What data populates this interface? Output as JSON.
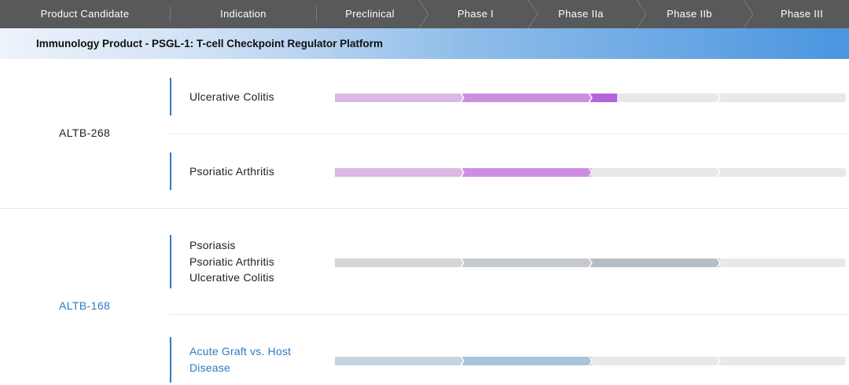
{
  "header": {
    "columns": [
      "Product Candidate",
      "Indication",
      "Preclinical",
      "Phase I",
      "Phase IIa",
      "Phase IIb",
      "Phase III"
    ]
  },
  "category": {
    "title": "Immunology Product - PSGL-1: T-cell Checkpoint Regulator Platform"
  },
  "products": [
    {
      "name": "ALTB-268",
      "indications": [
        {
          "lines": [
            "Ulcerative Colitis"
          ],
          "progress_phases": 2.2,
          "colors": [
            "#dcb8e5",
            "#cc8fe0",
            "#b564de"
          ]
        },
        {
          "lines": [
            "Psoriatic Arthritis"
          ],
          "progress_phases": 2.0,
          "colors": [
            "#dcb8e5",
            "#cc8fe0"
          ]
        }
      ]
    },
    {
      "name": "ALTB-168",
      "indications": [
        {
          "lines": [
            "Psoriasis",
            "Psoriatic Arthritis",
            "Ulcerative Colitis"
          ],
          "progress_phases": 3.0,
          "colors": [
            "#d5d6d8",
            "#c5c9cd",
            "#b6bec5"
          ]
        },
        {
          "lines": [
            "Acute Graft vs. Host",
            "Disease"
          ],
          "progress_phases": 2.0,
          "colors": [
            "#c4d4e2",
            "#a8c3da"
          ]
        }
      ]
    }
  ],
  "track_color": "#e8e8e8",
  "accent_color": "#2b7bc4"
}
